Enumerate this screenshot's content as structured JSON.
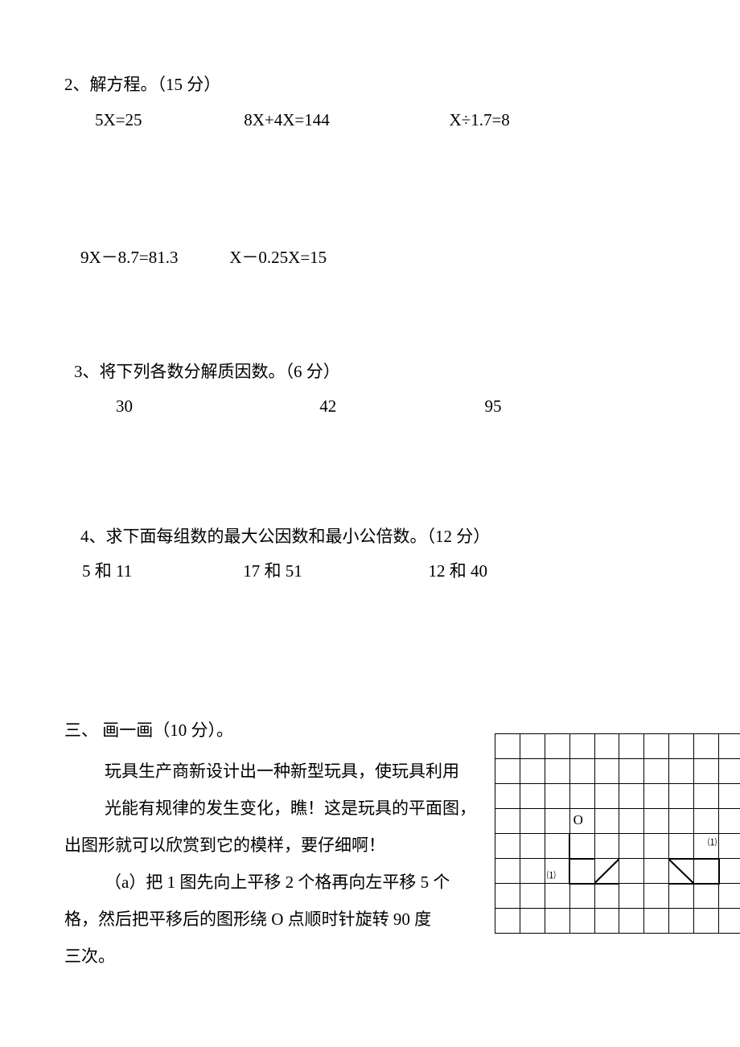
{
  "q2": {
    "heading": "2、解方程。（15 分）",
    "row1": {
      "a": "5X=25",
      "b": "8X+4X=144",
      "c": "X÷1.7=8"
    },
    "row2": {
      "a": "9X－8.7=81.3",
      "b": "X－0.25X=15"
    }
  },
  "q3": {
    "heading": "3、将下列各数分解质因数。（6 分）",
    "nums": {
      "a": "30",
      "b": "42",
      "c": "95"
    }
  },
  "q4": {
    "heading": "4、求下面每组数的最大公因数和最小公倍数。（12 分）",
    "groups": {
      "a": "5 和 11",
      "b": "17 和 51",
      "c": "12 和 40"
    }
  },
  "section3": {
    "heading": "三、 画一画（10 分）。",
    "line1": "玩具生产商新设计出一种新型玩具，使玩具利用",
    "line2": "光能有规律的发生变化，瞧！这是玩具的平面图，",
    "line3": "出图形就可以欣赏到它的模样，要仔细啊！",
    "line4": "（a）把 1 图先向上平移 2 个格再向左平移 5 个",
    "line5": "格，然后把平移后的图形绕 O 点顺时针旋转 90 度",
    "line6": "三次。"
  },
  "grid": {
    "rows": 8,
    "cols": 10,
    "cell_size": 31,
    "border_color": "#000000",
    "o_label": "O",
    "label1": "⑴",
    "label2": "⑴",
    "o_cell": {
      "row": 3,
      "col": 3
    },
    "triangle1": {
      "cells": [
        [
          5,
          3
        ],
        [
          5,
          4
        ]
      ],
      "diag_cell": [
        5,
        4
      ],
      "diag_from": "bl",
      "diag_to": "tr"
    },
    "triangle2": {
      "cells": [
        [
          5,
          7
        ],
        [
          5,
          8
        ]
      ],
      "diag_cell": [
        5,
        7
      ],
      "diag_from": "tl",
      "diag_to": "br"
    },
    "thick_lines": [
      {
        "r1": 4,
        "c1": 3,
        "r2": 6,
        "c2": 3
      },
      {
        "r1": 6,
        "c1": 3,
        "r2": 6,
        "c2": 5
      },
      {
        "r1": 5,
        "c1": 3,
        "r2": 5,
        "c2": 4
      },
      {
        "r1": 5,
        "c1": 7,
        "r2": 5,
        "c2": 9
      },
      {
        "r1": 5,
        "c1": 9,
        "r2": 6,
        "c2": 9
      },
      {
        "r1": 6,
        "c1": 7,
        "r2": 6,
        "c2": 9
      }
    ]
  }
}
